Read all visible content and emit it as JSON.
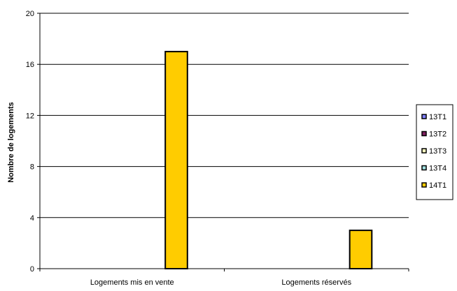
{
  "chart_data": {
    "type": "bar",
    "title": "",
    "xlabel": "",
    "ylabel": "Nombre de logements",
    "ylim": [
      0,
      20
    ],
    "yticks": [
      0,
      4,
      8,
      12,
      16,
      20
    ],
    "grid": true,
    "legend_position": "right",
    "categories": [
      "Logements mis en vente",
      "Logements réservés"
    ],
    "series": [
      {
        "name": "13T1",
        "color": "#8080ff",
        "values": [
          0,
          0
        ]
      },
      {
        "name": "13T2",
        "color": "#802060",
        "values": [
          0,
          0
        ]
      },
      {
        "name": "13T3",
        "color": "#ffffc0",
        "values": [
          0,
          0
        ]
      },
      {
        "name": "13T4",
        "color": "#a0e0e0",
        "values": [
          0,
          0
        ]
      },
      {
        "name": "14T1",
        "color": "#ffcc00",
        "values": [
          17,
          3
        ]
      }
    ]
  }
}
